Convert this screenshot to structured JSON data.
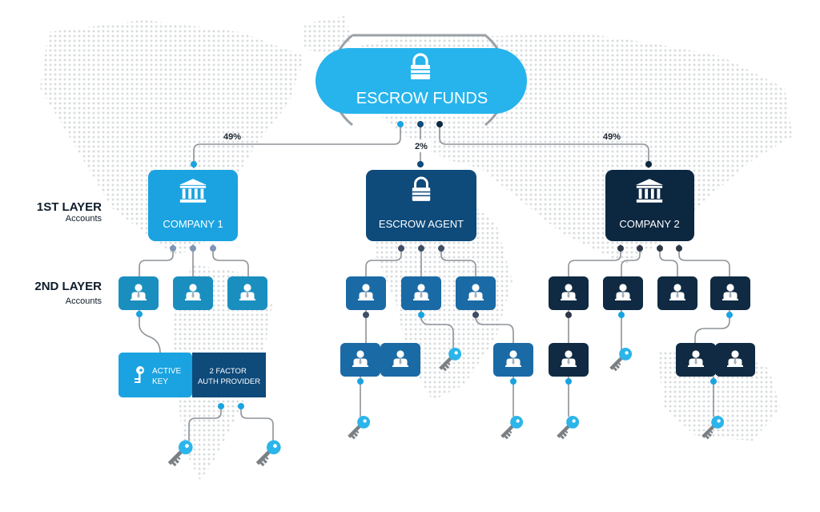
{
  "top": {
    "label": "ESCROW FUNDS",
    "icon": "padlock-icon"
  },
  "splits": {
    "left": "49%",
    "middle": "2%",
    "right": "49%"
  },
  "layers": {
    "first_title": "1ST LAYER",
    "first_sub": "Accounts",
    "second_title": "2ND LAYER",
    "second_sub": "Accounts"
  },
  "nodes": {
    "company1": {
      "label": "COMPANY 1",
      "icon": "bank-icon"
    },
    "agent": {
      "label": "ESCROW AGENT",
      "icon": "padlock-icon"
    },
    "company2": {
      "label": "COMPANY 2",
      "icon": "bank-icon"
    }
  },
  "auth": {
    "active_key": "ACTIVE\nKEY",
    "provider": "2 FACTOR\nAUTH PROVIDER"
  },
  "colors": {
    "company1": "#1aa3e0",
    "company1_accounts": "#1a8fbf",
    "agent": "#0e4a7a",
    "agent_accounts": "#1a6aa6",
    "company2": "#0c2740",
    "company2_accounts": "#0f2a42",
    "escrow_funds": "#27b4ec",
    "key": "#2bb5ea"
  }
}
